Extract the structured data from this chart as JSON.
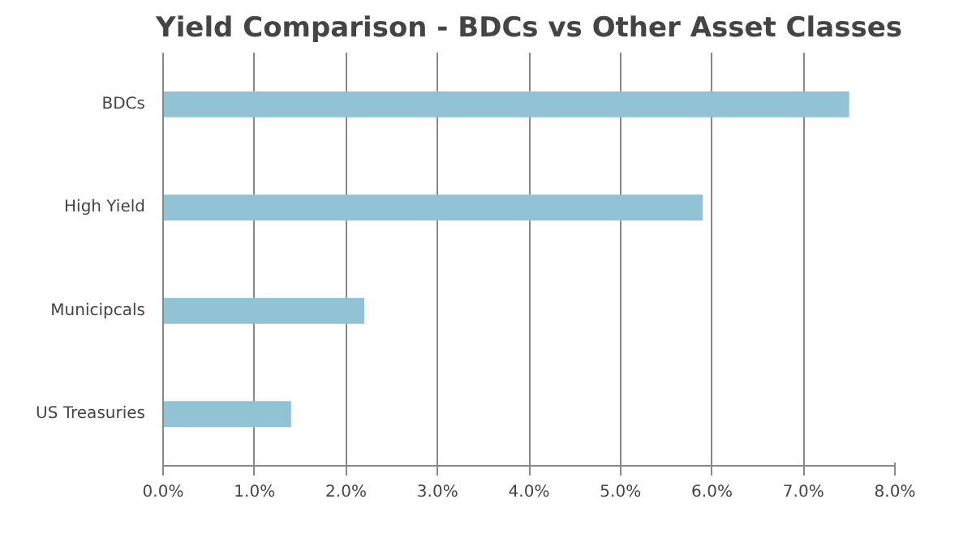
{
  "chart_data": {
    "type": "bar",
    "orientation": "horizontal",
    "title": "Yield Comparison - BDCs vs Other Asset Classes",
    "categories": [
      "BDCs",
      "High Yield",
      "Municipcals",
      "US Treasuries"
    ],
    "values": [
      7.5,
      5.9,
      2.2,
      1.4
    ],
    "color": "#92c3d5",
    "xlim": [
      0,
      8
    ],
    "xticks": [
      {
        "value": 0,
        "label": "0.0%"
      },
      {
        "value": 1,
        "label": "1.0%"
      },
      {
        "value": 2,
        "label": "2.0%"
      },
      {
        "value": 3,
        "label": "3.0%"
      },
      {
        "value": 4,
        "label": "4.0%"
      },
      {
        "value": 5,
        "label": "5.0%"
      },
      {
        "value": 6,
        "label": "6.0%"
      },
      {
        "value": 7,
        "label": "7.0%"
      },
      {
        "value": 8,
        "label": "8.0%"
      }
    ],
    "grid": "x"
  }
}
